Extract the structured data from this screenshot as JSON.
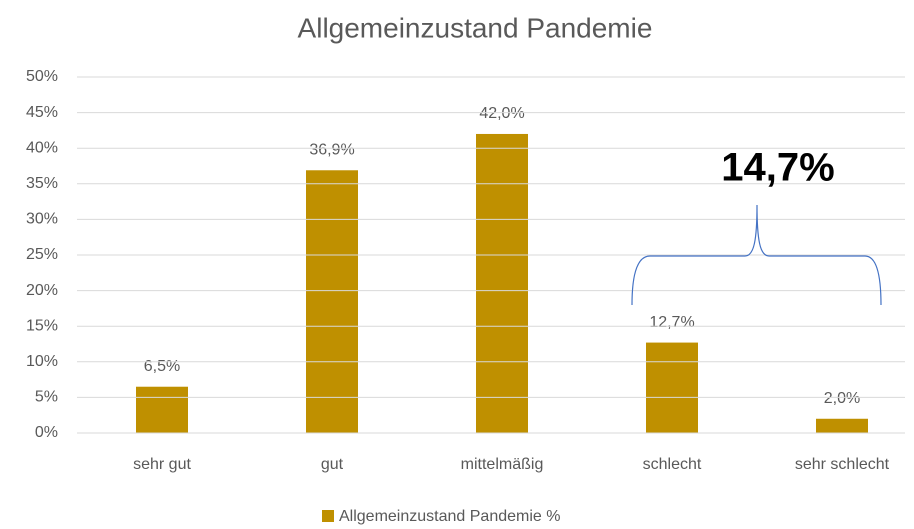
{
  "chart_data": {
    "type": "bar",
    "title": "Allgemeinzustand Pandemie",
    "categories": [
      "sehr gut",
      "gut",
      "mittelmäßig",
      "schlecht",
      "sehr schlecht"
    ],
    "series": [
      {
        "name": "Allgemeinzustand Pandemie %",
        "color": "#bf9000",
        "values": [
          6.5,
          36.9,
          42.0,
          12.7,
          2.0
        ],
        "value_labels": [
          "6,5%",
          "36,9%",
          "42,0%",
          "12,7%",
          "2,0%"
        ]
      }
    ],
    "ylim": [
      0,
      50
    ],
    "yticks": [
      {
        "value": 0,
        "label": "0%"
      },
      {
        "value": 5,
        "label": "5%"
      },
      {
        "value": 10,
        "label": "10%"
      },
      {
        "value": 15,
        "label": "15%"
      },
      {
        "value": 20,
        "label": "20%"
      },
      {
        "value": 25,
        "label": "25%"
      },
      {
        "value": 30,
        "label": "30%"
      },
      {
        "value": 35,
        "label": "35%"
      },
      {
        "value": 40,
        "label": "40%"
      },
      {
        "value": 45,
        "label": "45%"
      },
      {
        "value": 50,
        "label": "50%"
      }
    ],
    "grid": true,
    "legend": "bottom",
    "annotation": "14,7%"
  }
}
